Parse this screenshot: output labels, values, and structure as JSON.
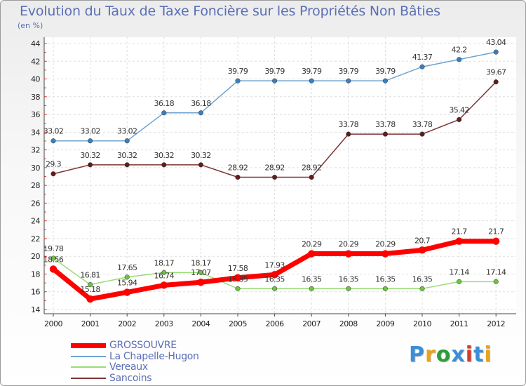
{
  "title": "Evolution du Taux de Taxe Foncière sur les Propriétés Non Bâties",
  "unit": "(en %)",
  "logo": {
    "text": "Proxiti",
    "colors": [
      "#3b8fd6",
      "#e8a31d",
      "#2d9d3a",
      "#3b8fd6",
      "#d33b2e",
      "#3b8fd6",
      "#e8a31d"
    ]
  },
  "chart_data": {
    "type": "line",
    "title": "Evolution du Taux de Taxe Foncière sur les Propriétés Non Bâties",
    "ylabel": "(en %)",
    "xlabel": "",
    "ylim": [
      14,
      44
    ],
    "yticks": [
      14,
      16,
      18,
      20,
      22,
      24,
      26,
      28,
      30,
      32,
      34,
      36,
      38,
      40,
      42,
      44
    ],
    "x": [
      2000,
      2001,
      2002,
      2003,
      2004,
      2005,
      2006,
      2007,
      2008,
      2009,
      2010,
      2011,
      2012
    ],
    "grid": true,
    "legend": "bottom",
    "series": [
      {
        "name": "GROSSOUVRE",
        "color": "#ff0000",
        "marker": "#ff0000",
        "width": 7,
        "values": [
          18.56,
          15.18,
          15.94,
          16.74,
          17.07,
          17.58,
          17.93,
          20.29,
          20.29,
          20.29,
          20.7,
          21.7,
          21.7
        ],
        "labels": [
          "18.56",
          "15.18",
          "15.94",
          "16.74",
          "17.07",
          "17.58",
          "17.93",
          "20.29",
          "20.29",
          "20.29",
          "20.7",
          "21.7",
          "21.7"
        ]
      },
      {
        "name": "La Chapelle-Hugon",
        "color": "#6ea3cf",
        "marker": "#3b7fbf",
        "width": 1.5,
        "values": [
          33.02,
          33.02,
          33.02,
          36.18,
          36.18,
          39.79,
          39.79,
          39.79,
          39.79,
          39.79,
          41.37,
          42.2,
          43.04
        ],
        "labels": [
          "33.02",
          "33.02",
          "33.02",
          "36.18",
          "36.18",
          "39.79",
          "39.79",
          "39.79",
          "39.79",
          "39.79",
          "41.37",
          "42.2",
          "43.04"
        ]
      },
      {
        "name": "Vereaux",
        "color": "#99dd77",
        "marker": "#6cc43f",
        "width": 1.5,
        "values": [
          19.78,
          16.81,
          17.65,
          18.17,
          18.17,
          16.35,
          16.35,
          16.35,
          16.35,
          16.35,
          16.35,
          17.14,
          17.14
        ],
        "labels": [
          "19.78",
          "16.81",
          "17.65",
          "18.17",
          "18.17",
          "16.35",
          "16.35",
          "16.35",
          "16.35",
          "16.35",
          "16.35",
          "17.14",
          "17.14"
        ]
      },
      {
        "name": "Sancoins",
        "color": "#7d3434",
        "marker": "#5e1e1e",
        "width": 1.5,
        "values": [
          29.3,
          30.32,
          30.32,
          30.32,
          30.32,
          28.92,
          28.92,
          28.92,
          33.78,
          33.78,
          33.78,
          35.42,
          39.67
        ],
        "labels": [
          "29.3",
          "30.32",
          "30.32",
          "30.32",
          "30.32",
          "28.92",
          "28.92",
          "28.92",
          "33.78",
          "33.78",
          "33.78",
          "35.42",
          "39.67"
        ]
      }
    ]
  }
}
